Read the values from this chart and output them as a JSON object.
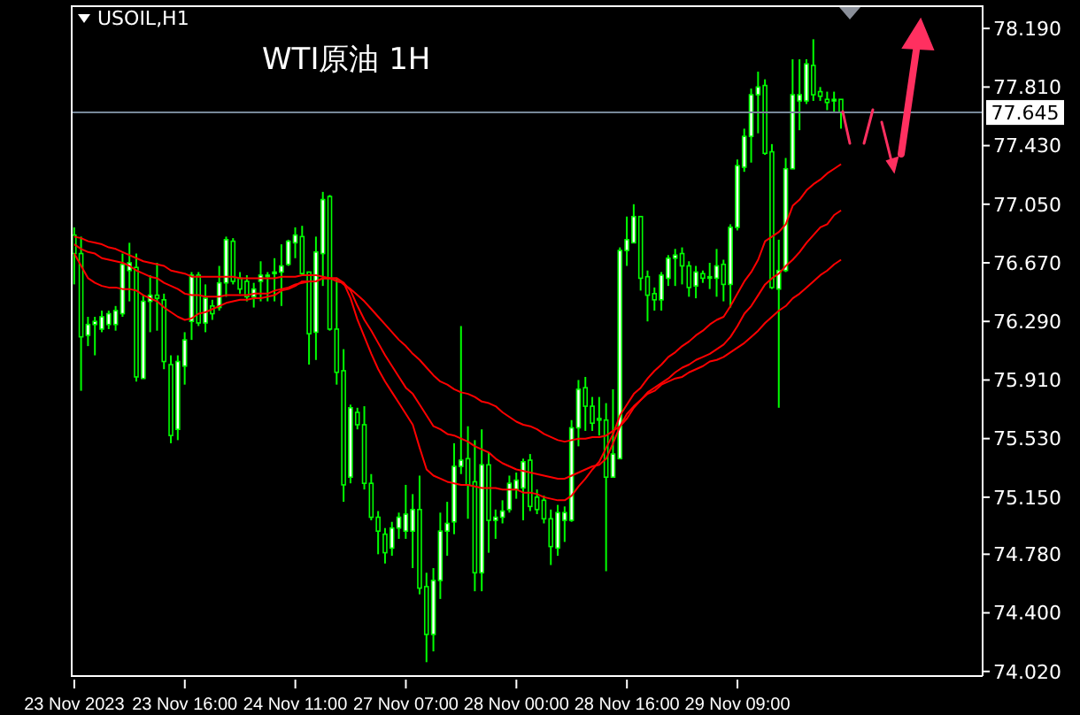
{
  "chart_data": {
    "type": "candlestick",
    "title": "WTI原油 1H",
    "subtitle": "USOIL,H1",
    "color": "#00ff00",
    "categories": [
      "23 Nov 2023",
      null,
      null,
      null,
      null,
      null,
      null,
      null,
      null,
      null,
      null,
      null,
      null,
      null,
      null,
      null,
      "23 Nov 16:00",
      null,
      null,
      null,
      null,
      null,
      null,
      null,
      null,
      null,
      null,
      null,
      null,
      null,
      null,
      null,
      "24 Nov 11:00",
      null,
      null,
      null,
      null,
      null,
      null,
      null,
      null,
      null,
      null,
      null,
      null,
      null,
      null,
      null,
      "27 Nov 07:00",
      null,
      null,
      null,
      null,
      null,
      null,
      null,
      null,
      null,
      null,
      null,
      null,
      null,
      null,
      null,
      "28 Nov 00:00",
      null,
      null,
      null,
      null,
      null,
      null,
      null,
      null,
      null,
      null,
      null,
      null,
      null,
      null,
      null,
      "28 Nov 16:00",
      null,
      null,
      null,
      null,
      null,
      null,
      null,
      null,
      null,
      null,
      null,
      null,
      null,
      null,
      null,
      "29 Nov 09:00",
      null,
      null,
      null,
      null,
      null,
      null,
      null,
      null,
      null,
      null,
      null,
      null,
      null,
      null,
      null
    ],
    "ohlc": [
      [
        76.85,
        76.9,
        76.53,
        76.73
      ],
      [
        76.73,
        76.84,
        75.84,
        76.19
      ],
      [
        76.2,
        76.32,
        76.13,
        76.27
      ],
      [
        76.27,
        76.32,
        76.07,
        76.29
      ],
      [
        76.24,
        76.36,
        76.22,
        76.32
      ],
      [
        76.27,
        76.36,
        76.24,
        76.34
      ],
      [
        76.27,
        76.39,
        76.23,
        76.36
      ],
      [
        76.34,
        76.73,
        76.32,
        76.66
      ],
      [
        76.62,
        76.8,
        76.42,
        76.67
      ],
      [
        76.64,
        76.73,
        75.9,
        75.93
      ],
      [
        75.92,
        76.46,
        75.92,
        76.42
      ],
      [
        76.42,
        76.59,
        76.22,
        76.46
      ],
      [
        76.46,
        76.67,
        76.23,
        76.44
      ],
      [
        76.43,
        76.47,
        75.98,
        76.03
      ],
      [
        76.01,
        76.07,
        75.5,
        75.55
      ],
      [
        75.59,
        76.07,
        75.52,
        76.03
      ],
      [
        76.0,
        76.22,
        75.88,
        76.17
      ],
      [
        76.29,
        76.61,
        76.17,
        76.59
      ],
      [
        76.59,
        76.61,
        76.26,
        76.28
      ],
      [
        76.28,
        76.53,
        76.22,
        76.44
      ],
      [
        76.39,
        76.43,
        76.3,
        76.34
      ],
      [
        76.38,
        76.65,
        76.36,
        76.54
      ],
      [
        76.54,
        76.84,
        76.45,
        76.82
      ],
      [
        76.81,
        76.83,
        76.53,
        76.55
      ],
      [
        76.57,
        76.61,
        76.47,
        76.5
      ],
      [
        76.55,
        76.59,
        76.42,
        76.45
      ],
      [
        76.45,
        76.54,
        76.38,
        76.5
      ],
      [
        76.55,
        76.68,
        76.42,
        76.59
      ],
      [
        76.58,
        76.61,
        76.42,
        76.59
      ],
      [
        76.6,
        76.7,
        76.42,
        76.61
      ],
      [
        76.61,
        76.79,
        76.39,
        76.65
      ],
      [
        76.66,
        76.82,
        76.65,
        76.81
      ],
      [
        76.8,
        76.9,
        76.7,
        76.85
      ],
      [
        76.84,
        76.91,
        76.59,
        76.6
      ],
      [
        76.61,
        76.61,
        76.01,
        76.21
      ],
      [
        76.22,
        76.84,
        76.04,
        76.74
      ],
      [
        76.73,
        77.13,
        76.52,
        77.08
      ],
      [
        77.1,
        77.11,
        76.23,
        76.24
      ],
      [
        76.24,
        76.57,
        75.88,
        75.96
      ],
      [
        75.97,
        76.11,
        75.12,
        75.23
      ],
      [
        75.28,
        75.75,
        75.24,
        75.73
      ],
      [
        75.7,
        75.73,
        75.59,
        75.62
      ],
      [
        75.62,
        75.74,
        75.2,
        75.24
      ],
      [
        75.24,
        75.3,
        75.0,
        75.02
      ],
      [
        75.02,
        75.06,
        74.78,
        74.93
      ],
      [
        74.91,
        74.95,
        74.72,
        74.79
      ],
      [
        74.82,
        74.99,
        74.77,
        74.95
      ],
      [
        74.95,
        75.05,
        74.88,
        75.02
      ],
      [
        74.93,
        75.23,
        74.88,
        75.04
      ],
      [
        74.93,
        75.17,
        74.69,
        75.07
      ],
      [
        75.07,
        75.29,
        74.52,
        74.56
      ],
      [
        74.57,
        74.66,
        74.08,
        74.26
      ],
      [
        74.26,
        74.69,
        74.15,
        74.61
      ],
      [
        74.61,
        75.05,
        74.49,
        74.93
      ],
      [
        74.93,
        75.12,
        74.77,
        74.98
      ],
      [
        74.99,
        75.5,
        74.91,
        75.35
      ],
      [
        75.35,
        76.26,
        75.3,
        75.39
      ],
      [
        75.4,
        75.61,
        75.01,
        75.23
      ],
      [
        75.25,
        75.52,
        74.54,
        74.66
      ],
      [
        74.66,
        75.59,
        74.54,
        75.36
      ],
      [
        75.36,
        75.44,
        74.79,
        75.0
      ],
      [
        75.0,
        75.07,
        74.88,
        75.02
      ],
      [
        75.02,
        75.13,
        74.98,
        75.06
      ],
      [
        75.07,
        75.29,
        75.05,
        75.24
      ],
      [
        75.2,
        75.31,
        75.14,
        75.26
      ],
      [
        75.21,
        75.4,
        75.0,
        75.38
      ],
      [
        75.39,
        75.43,
        75.06,
        75.09
      ],
      [
        75.15,
        75.2,
        75.04,
        75.07
      ],
      [
        75.13,
        75.16,
        74.98,
        75.01
      ],
      [
        75.01,
        75.07,
        74.71,
        74.83
      ],
      [
        74.82,
        75.1,
        74.77,
        75.05
      ],
      [
        75.0,
        75.09,
        74.86,
        75.05
      ],
      [
        75.0,
        75.65,
        74.99,
        75.6
      ],
      [
        75.6,
        75.91,
        75.48,
        75.85
      ],
      [
        75.86,
        75.93,
        75.58,
        75.74
      ],
      [
        75.74,
        75.8,
        75.58,
        75.63
      ],
      [
        75.66,
        75.8,
        75.55,
        75.65
      ],
      [
        75.65,
        75.76,
        74.67,
        75.28
      ],
      [
        75.28,
        75.85,
        75.28,
        75.43
      ],
      [
        75.4,
        76.77,
        75.4,
        76.75
      ],
      [
        76.75,
        76.97,
        76.65,
        76.82
      ],
      [
        76.8,
        77.05,
        76.8,
        76.97
      ],
      [
        76.97,
        76.97,
        76.49,
        76.57
      ],
      [
        76.58,
        76.62,
        76.29,
        76.46
      ],
      [
        76.47,
        76.51,
        76.36,
        76.43
      ],
      [
        76.43,
        76.61,
        76.36,
        76.59
      ],
      [
        76.57,
        76.72,
        76.52,
        76.7
      ],
      [
        76.7,
        76.76,
        76.52,
        76.72
      ],
      [
        76.73,
        76.77,
        76.53,
        76.65
      ],
      [
        76.65,
        76.68,
        76.45,
        76.51
      ],
      [
        76.52,
        76.65,
        76.44,
        76.61
      ],
      [
        76.6,
        76.62,
        76.54,
        76.57
      ],
      [
        76.57,
        76.67,
        76.5,
        76.58
      ],
      [
        76.57,
        76.76,
        76.45,
        76.65
      ],
      [
        76.66,
        76.69,
        76.42,
        76.53
      ],
      [
        76.53,
        76.92,
        76.38,
        76.9
      ],
      [
        76.9,
        77.34,
        76.88,
        77.3
      ],
      [
        77.29,
        77.54,
        77.26,
        77.49
      ],
      [
        77.49,
        77.8,
        77.32,
        77.76
      ],
      [
        77.76,
        77.91,
        77.51,
        77.81
      ],
      [
        77.82,
        77.86,
        77.37,
        77.38
      ],
      [
        77.39,
        77.44,
        76.5,
        76.51
      ],
      [
        76.5,
        76.82,
        75.73,
        76.62
      ],
      [
        76.62,
        77.35,
        76.61,
        77.28
      ],
      [
        77.28,
        77.99,
        77.28,
        77.76
      ],
      [
        77.72,
        77.99,
        77.53,
        77.76
      ],
      [
        77.72,
        77.99,
        77.7,
        77.96
      ],
      [
        77.95,
        78.12,
        77.72,
        77.76
      ],
      [
        77.78,
        77.81,
        77.72,
        77.75
      ],
      [
        77.73,
        77.78,
        77.66,
        77.71
      ],
      [
        77.72,
        77.78,
        77.65,
        77.73
      ],
      [
        77.73,
        77.73,
        77.54,
        77.645
      ]
    ],
    "series": [
      {
        "type": "line",
        "color": "#ff0000",
        "values": [
          76.73,
          76.65,
          76.57,
          76.54,
          76.52,
          76.51,
          76.51,
          76.5,
          76.5,
          76.49,
          76.46,
          76.44,
          76.42,
          76.38,
          76.35,
          76.32,
          76.3,
          76.31,
          76.34,
          76.35,
          76.37,
          76.39,
          76.41,
          76.42,
          76.43,
          76.43,
          76.44,
          76.44,
          76.45,
          76.46,
          76.49,
          76.5,
          76.52,
          76.55,
          76.55,
          76.55,
          76.57,
          76.57,
          76.57,
          76.54,
          76.44,
          76.3,
          76.19,
          76.08,
          75.98,
          75.9,
          75.83,
          75.76,
          75.69,
          75.62,
          75.47,
          75.33,
          75.29,
          75.27,
          75.25,
          75.24,
          75.23,
          75.23,
          75.22,
          75.21,
          75.21,
          75.21,
          75.2,
          75.2,
          75.2,
          75.18,
          75.18,
          75.17,
          75.15,
          75.14,
          75.13,
          75.13,
          75.16,
          75.22,
          75.27,
          75.33,
          75.38,
          75.47,
          75.56,
          75.68,
          75.75,
          75.82,
          75.86,
          75.92,
          75.97,
          76.01,
          76.06,
          76.09,
          76.13,
          76.16,
          76.2,
          76.23,
          76.27,
          76.3,
          76.32,
          76.39,
          76.47,
          76.55,
          76.61,
          76.69,
          76.81,
          76.84,
          76.87,
          76.92,
          77.04,
          77.08,
          77.14,
          77.18,
          77.21,
          77.25,
          77.28,
          77.31
        ]
      },
      {
        "type": "line",
        "color": "#ff0000",
        "values": [
          76.79,
          76.76,
          76.74,
          76.73,
          76.7,
          76.69,
          76.68,
          76.67,
          76.65,
          76.62,
          76.6,
          76.58,
          76.57,
          76.54,
          76.52,
          76.5,
          76.47,
          76.46,
          76.46,
          76.45,
          76.45,
          76.45,
          76.46,
          76.46,
          76.46,
          76.46,
          76.47,
          76.47,
          76.47,
          76.49,
          76.5,
          76.51,
          76.53,
          76.54,
          76.55,
          76.55,
          76.57,
          76.57,
          76.55,
          76.54,
          76.49,
          76.39,
          76.3,
          76.23,
          76.15,
          76.07,
          76.0,
          75.93,
          75.86,
          75.82,
          75.75,
          75.68,
          75.61,
          75.59,
          75.56,
          75.55,
          75.53,
          75.51,
          75.48,
          75.46,
          75.44,
          75.4,
          75.37,
          75.35,
          75.33,
          75.32,
          75.31,
          75.3,
          75.29,
          75.28,
          75.27,
          75.27,
          75.29,
          75.31,
          75.33,
          75.35,
          75.36,
          75.4,
          75.5,
          75.61,
          75.69,
          75.74,
          75.78,
          75.83,
          75.86,
          75.89,
          75.92,
          75.96,
          75.99,
          76.01,
          76.04,
          76.06,
          76.08,
          76.11,
          76.14,
          76.19,
          76.26,
          76.34,
          76.39,
          76.46,
          76.53,
          76.57,
          76.6,
          76.65,
          76.69,
          76.74,
          76.8,
          76.85,
          76.9,
          76.92,
          76.98,
          77.01
        ]
      },
      {
        "type": "line",
        "color": "#ff0000",
        "values": [
          76.84,
          76.83,
          76.81,
          76.8,
          76.79,
          76.77,
          76.76,
          76.74,
          76.72,
          76.7,
          76.68,
          76.67,
          76.66,
          76.65,
          76.62,
          76.61,
          76.6,
          76.58,
          76.58,
          76.58,
          76.58,
          76.58,
          76.58,
          76.58,
          76.57,
          76.57,
          76.57,
          76.57,
          76.57,
          76.57,
          76.58,
          76.58,
          76.58,
          76.59,
          76.59,
          76.59,
          76.58,
          76.57,
          76.57,
          76.53,
          76.5,
          76.46,
          76.42,
          76.37,
          76.32,
          76.27,
          76.22,
          76.17,
          76.13,
          76.08,
          76.04,
          75.99,
          75.94,
          75.9,
          75.88,
          75.85,
          75.83,
          75.82,
          75.8,
          75.77,
          75.76,
          75.74,
          75.7,
          75.67,
          75.64,
          75.62,
          75.61,
          75.59,
          75.56,
          75.54,
          75.52,
          75.51,
          75.52,
          75.53,
          75.53,
          75.54,
          75.54,
          75.55,
          75.58,
          75.61,
          75.66,
          75.73,
          75.78,
          75.82,
          75.84,
          75.88,
          75.9,
          75.92,
          75.93,
          75.96,
          75.98,
          76.0,
          76.03,
          76.04,
          76.06,
          76.09,
          76.12,
          76.15,
          76.19,
          76.23,
          76.28,
          76.32,
          76.36,
          76.39,
          76.44,
          76.47,
          76.51,
          76.55,
          76.59,
          76.62,
          76.66,
          76.69
        ]
      }
    ],
    "ylim": [
      73.99,
      78.34
    ],
    "yticks": [
      {
        "value": 74.02,
        "label": "74.020"
      },
      {
        "value": 74.4,
        "label": "74.400"
      },
      {
        "value": 74.78,
        "label": "74.780"
      },
      {
        "value": 75.15,
        "label": "75.150"
      },
      {
        "value": 75.53,
        "label": "75.530"
      },
      {
        "value": 75.91,
        "label": "75.910"
      },
      {
        "value": 76.29,
        "label": "76.290"
      },
      {
        "value": 76.67,
        "label": "76.670"
      },
      {
        "value": 77.05,
        "label": "77.050"
      },
      {
        "value": 77.43,
        "label": "77.430"
      },
      {
        "value": 77.81,
        "label": "77.810"
      },
      {
        "value": 78.19,
        "label": "78.190"
      }
    ],
    "ref_lines": [
      {
        "axis": "y",
        "value": 77.645,
        "label": "77.645",
        "color": "#778899"
      }
    ]
  }
}
